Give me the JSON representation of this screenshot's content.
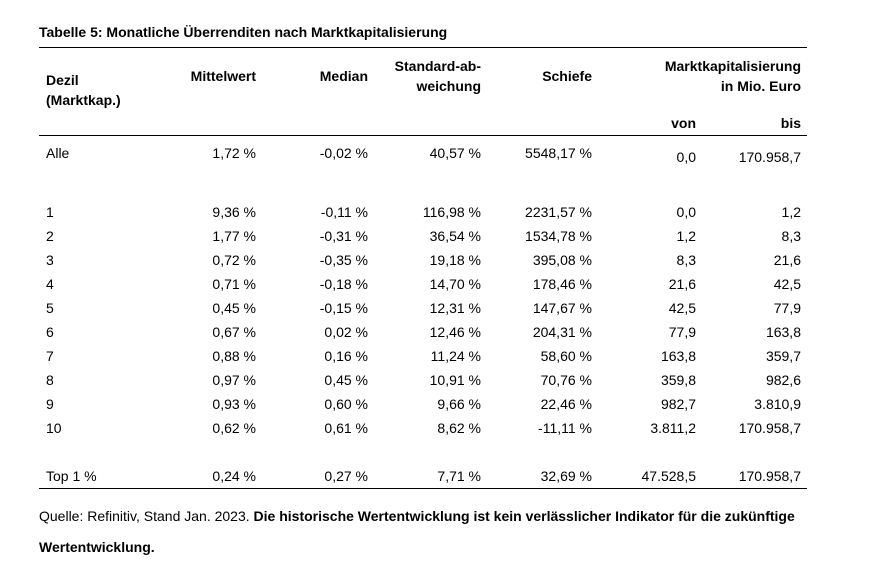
{
  "title": "Tabelle 5: Monatliche Überrenditen nach Marktkapitalisierung",
  "headers": {
    "dezil_1": "Dezil",
    "dezil_2": "(Marktkap.)",
    "mittelwert": "Mittelwert",
    "median": "Median",
    "std_1": "Standard-ab-",
    "std_2": "weichung",
    "schiefe": "Schiefe",
    "mkap_1": "Marktkapitalisierung",
    "mkap_2": "in Mio. Euro",
    "von": "von",
    "bis": "bis"
  },
  "rows": [
    {
      "label": "Alle",
      "mittelwert": "1,72 %",
      "median": "-0,02 %",
      "std": "40,57 %",
      "schiefe": "5548,17 %",
      "von": "0,0",
      "bis": "170.958,7"
    },
    {
      "label": "1",
      "mittelwert": "9,36 %",
      "median": "-0,11 %",
      "std": "116,98 %",
      "schiefe": "2231,57 %",
      "von": "0,0",
      "bis": "1,2"
    },
    {
      "label": "2",
      "mittelwert": "1,77 %",
      "median": "-0,31 %",
      "std": "36,54 %",
      "schiefe": "1534,78 %",
      "von": "1,2",
      "bis": "8,3"
    },
    {
      "label": "3",
      "mittelwert": "0,72 %",
      "median": "-0,35 %",
      "std": "19,18 %",
      "schiefe": "395,08 %",
      "von": "8,3",
      "bis": "21,6"
    },
    {
      "label": "4",
      "mittelwert": "0,71 %",
      "median": "-0,18 %",
      "std": "14,70 %",
      "schiefe": "178,46 %",
      "von": "21,6",
      "bis": "42,5"
    },
    {
      "label": "5",
      "mittelwert": "0,45 %",
      "median": "-0,15 %",
      "std": "12,31 %",
      "schiefe": "147,67 %",
      "von": "42,5",
      "bis": "77,9"
    },
    {
      "label": "6",
      "mittelwert": "0,67 %",
      "median": "0,02 %",
      "std": "12,46 %",
      "schiefe": "204,31 %",
      "von": "77,9",
      "bis": "163,8"
    },
    {
      "label": "7",
      "mittelwert": "0,88 %",
      "median": "0,16 %",
      "std": "11,24 %",
      "schiefe": "58,60 %",
      "von": "163,8",
      "bis": "359,7"
    },
    {
      "label": "8",
      "mittelwert": "0,97 %",
      "median": "0,45 %",
      "std": "10,91 %",
      "schiefe": "70,76 %",
      "von": "359,8",
      "bis": "982,6"
    },
    {
      "label": "9",
      "mittelwert": "0,93 %",
      "median": "0,60 %",
      "std": "9,66 %",
      "schiefe": "22,46 %",
      "von": "982,7",
      "bis": "3.810,9"
    },
    {
      "label": "10",
      "mittelwert": "0,62 %",
      "median": "0,61 %",
      "std": "8,62 %",
      "schiefe": "-11,11 %",
      "von": "3.811,2",
      "bis": "170.958,7"
    },
    {
      "label": "Top 1 %",
      "mittelwert": "0,24 %",
      "median": "0,27 %",
      "std": "7,71 %",
      "schiefe": "32,69 %",
      "von": "47.528,5",
      "bis": "170.958,7"
    }
  ],
  "footer": {
    "source": "Quelle: Refinitiv, Stand Jan. 2023. ",
    "disclaimer": "Die historische Wertentwicklung ist kein verlässlicher Indikator für die zukünftige Wertentwicklung."
  }
}
